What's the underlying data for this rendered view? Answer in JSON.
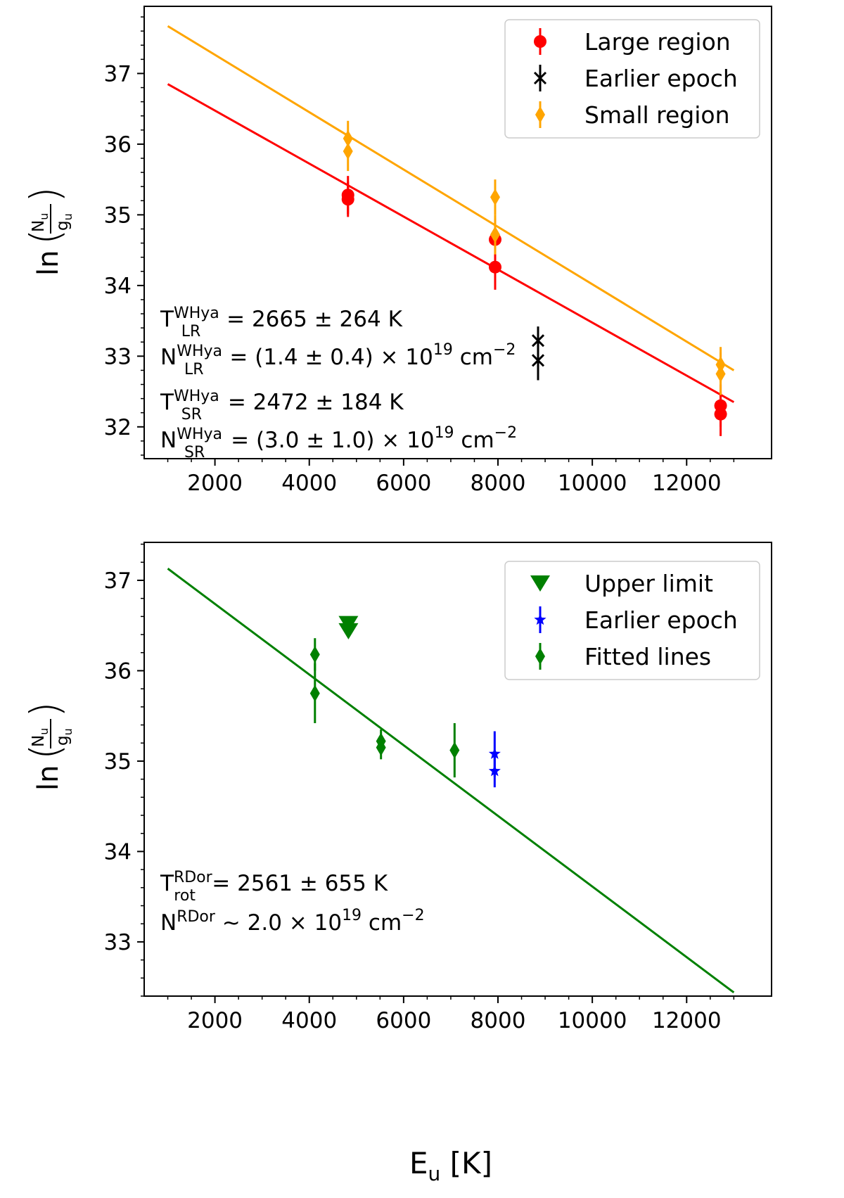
{
  "figure": {
    "xlabel_main": "E",
    "xlabel_sub": "u",
    "xlabel_unit": " [K]",
    "ylabel": {
      "prefix": "ln",
      "numerator": "N",
      "numerator_sub": "u",
      "denominator": "g",
      "denominator_sub": "u"
    }
  },
  "chart_data": [
    {
      "type": "scatter",
      "panel": "top",
      "xlim": [
        500,
        13800
      ],
      "ylim": [
        31.55,
        37.95
      ],
      "xticks": [
        2000,
        4000,
        6000,
        8000,
        10000,
        12000
      ],
      "yticks": [
        32,
        33,
        34,
        35,
        36,
        37
      ],
      "legend_position": "top-right",
      "legend": [
        "Large region",
        "Earlier epoch",
        "Small region"
      ],
      "series": [
        {
          "name": "Large region",
          "color": "#ff0000",
          "marker": "circle",
          "x": [
            4820,
            4820,
            7940,
            7940,
            12720,
            12720
          ],
          "y": [
            35.28,
            35.22,
            34.65,
            34.26,
            32.3,
            32.18
          ],
          "yerr": [
            0.27,
            0.25,
            0.3,
            0.32,
            0.3,
            0.31
          ]
        },
        {
          "name": "Earlier epoch",
          "color": "#000000",
          "marker": "x",
          "x": [
            8850,
            8850
          ],
          "y": [
            33.22,
            32.94
          ],
          "yerr": [
            0.2,
            0.28
          ]
        },
        {
          "name": "Small region",
          "color": "#ffa500",
          "marker": "diamond",
          "x": [
            4820,
            4820,
            7940,
            7940,
            12720,
            12720
          ],
          "y": [
            36.08,
            35.9,
            35.25,
            34.72,
            32.88,
            32.75
          ],
          "yerr": [
            0.25,
            0.28,
            0.25,
            0.28,
            0.25,
            0.3
          ]
        }
      ],
      "fit_lines": [
        {
          "name": "LR fit",
          "color": "#ff0000",
          "x": [
            1000,
            13000
          ],
          "y": [
            36.85,
            32.35
          ]
        },
        {
          "name": "SR fit",
          "color": "#ffa500",
          "x": [
            1000,
            13000
          ],
          "y": [
            37.67,
            32.8
          ]
        }
      ],
      "annotations": [
        {
          "sym": "T",
          "sup": "WHya",
          "sub": "LR",
          "text": " = 2665 ± 264 K"
        },
        {
          "sym": "N",
          "sup": "WHya",
          "sub": "LR",
          "text": " = (1.4 ± 0.4) × 10",
          "exp": "19",
          "unit": " cm",
          "unit_exp": "−2"
        },
        {
          "sym": "T",
          "sup": "WHya",
          "sub": "SR",
          "text": " = 2472 ± 184 K"
        },
        {
          "sym": "N",
          "sup": "WHya",
          "sub": "SR",
          "text": " = (3.0 ± 1.0) × 10",
          "exp": "19",
          "unit": " cm",
          "unit_exp": "−2"
        }
      ]
    },
    {
      "type": "scatter",
      "panel": "bottom",
      "xlim": [
        500,
        13800
      ],
      "ylim": [
        32.4,
        37.42
      ],
      "xticks": [
        2000,
        4000,
        6000,
        8000,
        10000,
        12000
      ],
      "yticks": [
        33,
        34,
        35,
        36,
        37
      ],
      "legend_position": "top-right",
      "legend": [
        "Upper limit",
        "Earlier epoch",
        "Fitted lines"
      ],
      "series": [
        {
          "name": "Upper limit",
          "color": "#008000",
          "marker": "triangle-down",
          "x": [
            4830,
            4830
          ],
          "y": [
            36.52,
            36.44
          ]
        },
        {
          "name": "Earlier epoch",
          "color": "#0000ff",
          "marker": "star",
          "x": [
            7930,
            7930
          ],
          "y": [
            35.08,
            34.89
          ],
          "yerr": [
            0.25,
            0.18
          ]
        },
        {
          "name": "Fitted lines",
          "color": "#008000",
          "marker": "diamond",
          "x": [
            4120,
            4120,
            5520,
            5520,
            7080
          ],
          "y": [
            36.18,
            35.75,
            35.22,
            35.15,
            35.12
          ],
          "yerr": [
            0.18,
            0.33,
            0.13,
            0.13,
            0.3
          ]
        }
      ],
      "fit_lines": [
        {
          "name": "RDor fit",
          "color": "#008000",
          "x": [
            1000,
            13000
          ],
          "y": [
            37.13,
            32.44
          ]
        }
      ],
      "annotations": [
        {
          "sym": "T",
          "sup": "RDor",
          "sub": "rot",
          "text": " = 2561 ± 655 K"
        },
        {
          "sym": "N",
          "sup": "RDor",
          "sub": "",
          "text": " ∼  2.0 × 10",
          "exp": "19",
          "unit": " cm",
          "unit_exp": "−2"
        }
      ]
    }
  ]
}
